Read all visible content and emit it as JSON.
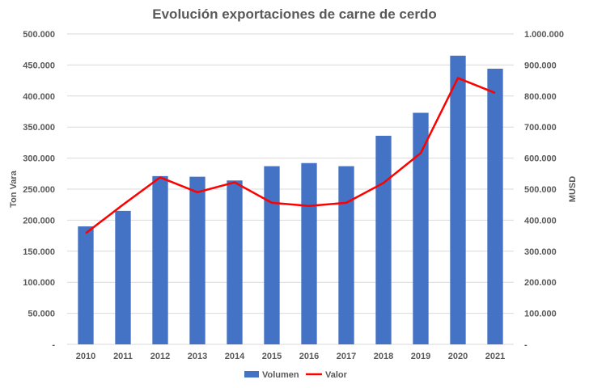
{
  "chart_data": {
    "type": "bar",
    "title": "Evolución exportaciones de carne de cerdo",
    "categories": [
      "2010",
      "2011",
      "2012",
      "2013",
      "2014",
      "2015",
      "2016",
      "2017",
      "2018",
      "2019",
      "2020",
      "2021"
    ],
    "series": [
      {
        "name": "Volumen",
        "type": "bar",
        "axis": "left",
        "color": "#4472C4",
        "values": [
          190000,
          215000,
          271000,
          270000,
          264000,
          287000,
          292000,
          287000,
          336000,
          373000,
          465000,
          444000
        ]
      },
      {
        "name": "Valor",
        "type": "line",
        "axis": "right",
        "color": "#FF0000",
        "values": [
          358000,
          450000,
          538000,
          490000,
          522000,
          456000,
          446000,
          456000,
          520000,
          616000,
          858000,
          810000
        ]
      }
    ],
    "ylabel": "Ton Vara",
    "ylabel_right": "MUSD",
    "ylim": [
      0,
      500000
    ],
    "ylim_right": [
      0,
      1000000
    ],
    "y_ticks": [
      "-",
      "50.000",
      "100.000",
      "150.000",
      "200.000",
      "250.000",
      "300.000",
      "350.000",
      "400.000",
      "450.000",
      "500.000"
    ],
    "y_ticks_right": [
      "-",
      "100.000",
      "200.000",
      "300.000",
      "400.000",
      "500.000",
      "600.000",
      "700.000",
      "800.000",
      "900.000",
      "1.000.000"
    ],
    "grid": true,
    "legend": "bottom"
  }
}
